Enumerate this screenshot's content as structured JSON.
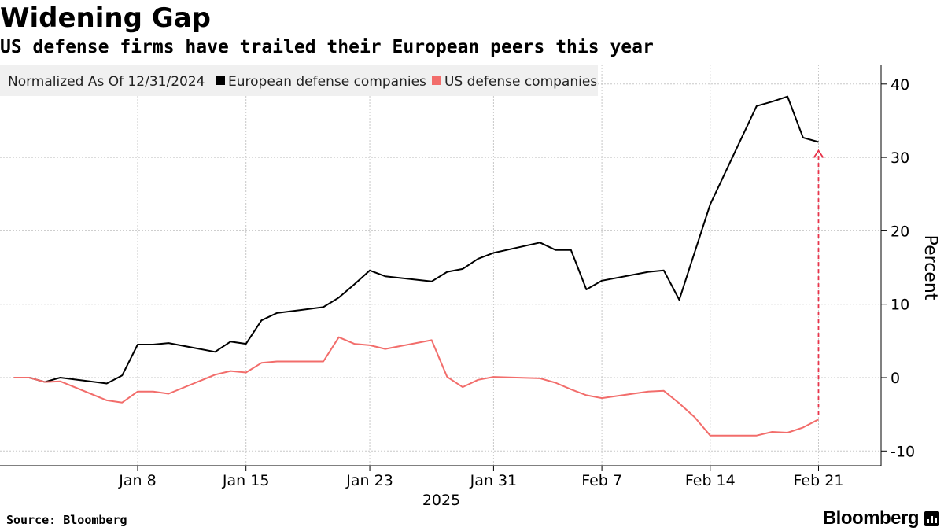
{
  "header": {
    "title": "Widening Gap",
    "subtitle": "US defense firms have trailed their European peers this year"
  },
  "footer": {
    "source": "Source: Bloomberg",
    "brand": "Bloomberg"
  },
  "colors": {
    "european": "#000000",
    "us": "#f26d6b",
    "gap_arrow": "#e8334a",
    "grid": "#c8c8c8",
    "legend_bg": "#f0f0f0"
  },
  "chart_data": {
    "type": "line",
    "legend": {
      "placement": "top-left",
      "note": "Normalized As Of 12/31/2024"
    },
    "x_tick_labels": [
      "Jan 8",
      "Jan 15",
      "Jan 23",
      "Jan 31",
      "Feb 7",
      "Feb 14",
      "Feb 21"
    ],
    "x_tick_dates": [
      "2025-01-08",
      "2025-01-15",
      "2025-01-23",
      "2025-01-31",
      "2025-02-07",
      "2025-02-14",
      "2025-02-21"
    ],
    "x_year_label": "2025",
    "xlim": [
      "2024-12-31",
      "2025-02-22"
    ],
    "ylabel": "Percent",
    "ylim": [
      -10,
      42
    ],
    "y_ticks": [
      -10,
      0,
      10,
      20,
      30,
      40
    ],
    "grid": true,
    "dates": [
      "2024-12-31",
      "2025-01-01",
      "2025-01-02",
      "2025-01-03",
      "2025-01-06",
      "2025-01-07",
      "2025-01-08",
      "2025-01-09",
      "2025-01-10",
      "2025-01-13",
      "2025-01-14",
      "2025-01-15",
      "2025-01-16",
      "2025-01-17",
      "2025-01-20",
      "2025-01-21",
      "2025-01-22",
      "2025-01-23",
      "2025-01-24",
      "2025-01-27",
      "2025-01-28",
      "2025-01-29",
      "2025-01-30",
      "2025-01-31",
      "2025-02-03",
      "2025-02-04",
      "2025-02-05",
      "2025-02-06",
      "2025-02-07",
      "2025-02-10",
      "2025-02-11",
      "2025-02-12",
      "2025-02-13",
      "2025-02-14",
      "2025-02-17",
      "2025-02-18",
      "2025-02-19",
      "2025-02-20",
      "2025-02-21"
    ],
    "series": [
      {
        "name": "European defense companies",
        "values": [
          0.0,
          0.0,
          -0.6,
          0.0,
          -0.8,
          0.3,
          4.5,
          4.5,
          4.7,
          3.5,
          4.9,
          4.6,
          7.8,
          8.8,
          9.6,
          10.9,
          12.7,
          14.6,
          13.8,
          13.1,
          14.4,
          14.8,
          16.2,
          17.0,
          18.4,
          17.4,
          17.4,
          12.0,
          13.2,
          14.4,
          14.6,
          10.6,
          17.1,
          23.6,
          37.0,
          37.6,
          38.3,
          32.7,
          32.1
        ]
      },
      {
        "name": "US defense companies",
        "values": [
          0.0,
          0.0,
          -0.6,
          -0.5,
          -3.1,
          -3.4,
          -1.9,
          -1.9,
          -2.2,
          0.4,
          0.9,
          0.7,
          2.0,
          2.2,
          2.2,
          5.5,
          4.6,
          4.4,
          3.9,
          5.1,
          0.1,
          -1.3,
          -0.3,
          0.1,
          -0.1,
          -0.7,
          -1.6,
          -2.4,
          -2.8,
          -1.9,
          -1.8,
          -3.5,
          -5.4,
          -7.9,
          -7.9,
          -7.4,
          -7.5,
          -6.8,
          -5.7
        ]
      }
    ]
  }
}
